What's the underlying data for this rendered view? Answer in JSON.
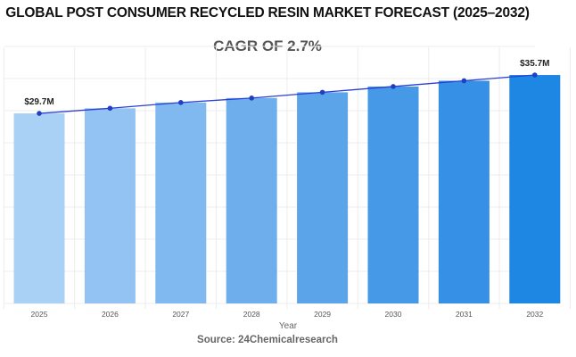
{
  "chart_data": {
    "type": "bar",
    "title": "GLOBAL POST CONSUMER RECYCLED RESIN MARKET FORECAST (2025–2032)",
    "subtitle": "CAGR OF 2.7%",
    "xlabel": "Year",
    "ylabel": "",
    "categories": [
      "2025",
      "2026",
      "2027",
      "2028",
      "2029",
      "2030",
      "2031",
      "2032"
    ],
    "values": [
      29.7,
      30.5,
      31.4,
      32.1,
      33.0,
      33.9,
      34.8,
      35.7
    ],
    "data_labels": [
      {
        "index": 0,
        "text": "$29.7M"
      },
      {
        "index": 7,
        "text": "$35.7M"
      }
    ],
    "ylim": [
      0,
      40
    ],
    "grid": true,
    "trend_line": true,
    "bar_colors": [
      "#a9d0f5",
      "#93c3f2",
      "#80b9ef",
      "#6eaeec",
      "#5ca4ea",
      "#4699e7",
      "#3690e5",
      "#1e86e3"
    ],
    "line_color": "#2a3fd6",
    "source": "Source: 24Chemicalresearch"
  }
}
